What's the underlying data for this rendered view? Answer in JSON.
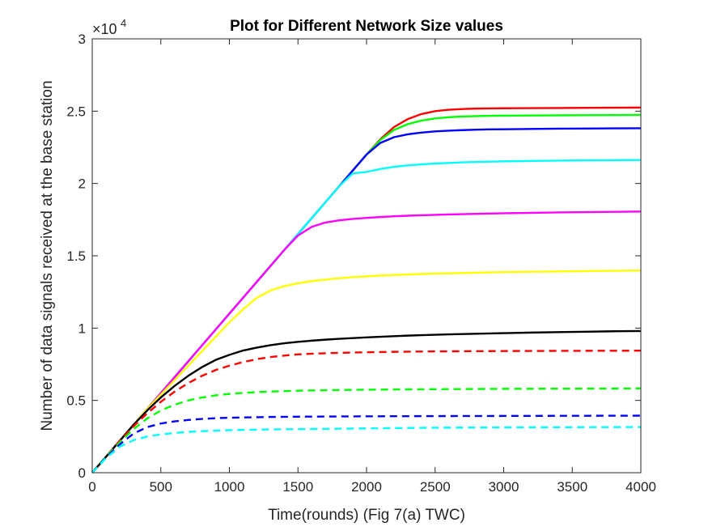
{
  "chart_data": {
    "type": "line",
    "title": "Plot for Different Network Size values",
    "xlabel": "Time(rounds) (Fig 7(a) TWC)",
    "ylabel": "Number of data signals received at the base station",
    "xlim": [
      0,
      4000
    ],
    "ylim": [
      0,
      30000
    ],
    "y_exponent_label": {
      "base": "×10",
      "power": "4"
    },
    "x_ticks": [
      0,
      500,
      1000,
      1500,
      2000,
      2500,
      3000,
      3500,
      4000
    ],
    "x_tick_labels": [
      "0",
      "500",
      "1000",
      "1500",
      "2000",
      "2500",
      "3000",
      "3500",
      "4000"
    ],
    "y_ticks": [
      0,
      5000,
      10000,
      15000,
      20000,
      25000,
      30000
    ],
    "y_tick_labels": [
      "0",
      "0.5",
      "1",
      "1.5",
      "2",
      "2.5",
      "3"
    ],
    "grid": false,
    "legend": "none",
    "x": [
      0,
      100,
      200,
      300,
      400,
      500,
      600,
      700,
      800,
      900,
      1000,
      1100,
      1200,
      1300,
      1400,
      1500,
      1600,
      1700,
      1800,
      1900,
      2000,
      2100,
      2200,
      2300,
      2400,
      2500,
      2600,
      2700,
      2800,
      2900,
      3000,
      3200,
      3400,
      3600,
      3800,
      4000
    ],
    "series": [
      {
        "color": "#ff0000",
        "style": "solid",
        "values": [
          0,
          1100,
          2200,
          3300,
          4400,
          5500,
          6600,
          7700,
          8800,
          9900,
          11000,
          12100,
          13200,
          14300,
          15400,
          16500,
          17600,
          18700,
          19800,
          20900,
          22000,
          23050,
          23900,
          24450,
          24800,
          25000,
          25100,
          25150,
          25180,
          25190,
          25200,
          25210,
          25220,
          25230,
          25240,
          25250
        ]
      },
      {
        "color": "#00ff00",
        "style": "solid",
        "values": [
          0,
          1100,
          2200,
          3300,
          4400,
          5500,
          6600,
          7700,
          8800,
          9900,
          11000,
          12100,
          13200,
          14300,
          15400,
          16500,
          17600,
          18700,
          19800,
          20900,
          22000,
          23000,
          23700,
          24100,
          24350,
          24500,
          24580,
          24630,
          24660,
          24680,
          24690,
          24700,
          24710,
          24720,
          24730,
          24740
        ]
      },
      {
        "color": "#0000ff",
        "style": "solid",
        "values": [
          0,
          1100,
          2200,
          3300,
          4400,
          5500,
          6600,
          7700,
          8800,
          9900,
          11000,
          12100,
          13200,
          14300,
          15400,
          16500,
          17600,
          18700,
          19800,
          20900,
          22000,
          22800,
          23200,
          23400,
          23520,
          23600,
          23650,
          23690,
          23720,
          23740,
          23750,
          23770,
          23790,
          23800,
          23810,
          23820
        ]
      },
      {
        "color": "#00ffff",
        "style": "solid",
        "values": [
          0,
          1100,
          2200,
          3300,
          4400,
          5500,
          6600,
          7700,
          8800,
          9900,
          11000,
          12100,
          13200,
          14300,
          15400,
          16500,
          17600,
          18700,
          19800,
          20700,
          20800,
          21000,
          21150,
          21250,
          21320,
          21380,
          21420,
          21460,
          21490,
          21510,
          21530,
          21560,
          21580,
          21600,
          21610,
          21620
        ]
      },
      {
        "color": "#ff00ff",
        "style": "solid",
        "values": [
          0,
          1100,
          2200,
          3300,
          4400,
          5500,
          6600,
          7700,
          8800,
          9900,
          11000,
          12100,
          13200,
          14300,
          15400,
          16400,
          17000,
          17300,
          17450,
          17550,
          17620,
          17680,
          17730,
          17770,
          17800,
          17830,
          17860,
          17880,
          17900,
          17920,
          17940,
          17970,
          18000,
          18020,
          18040,
          18060
        ]
      },
      {
        "color": "#ffff00",
        "style": "solid",
        "values": [
          0,
          1100,
          2200,
          3300,
          4400,
          5400,
          6400,
          7400,
          8400,
          9400,
          10400,
          11300,
          12100,
          12600,
          12900,
          13100,
          13250,
          13350,
          13450,
          13520,
          13580,
          13630,
          13670,
          13710,
          13740,
          13770,
          13790,
          13810,
          13830,
          13850,
          13870,
          13900,
          13920,
          13940,
          13960,
          13980
        ]
      },
      {
        "color": "#000000",
        "style": "solid",
        "values": [
          0,
          1100,
          2200,
          3300,
          4300,
          5200,
          6000,
          6700,
          7300,
          7800,
          8150,
          8450,
          8650,
          8820,
          8950,
          9050,
          9130,
          9200,
          9260,
          9310,
          9360,
          9400,
          9440,
          9480,
          9510,
          9540,
          9570,
          9590,
          9610,
          9630,
          9650,
          9690,
          9720,
          9750,
          9780,
          9800
        ]
      },
      {
        "color": "#ff0000",
        "style": "dashed",
        "values": [
          0,
          1100,
          2200,
          3200,
          4100,
          4900,
          5600,
          6200,
          6700,
          7100,
          7400,
          7650,
          7850,
          8000,
          8100,
          8180,
          8230,
          8260,
          8290,
          8310,
          8330,
          8345,
          8360,
          8370,
          8380,
          8390,
          8395,
          8400,
          8405,
          8410,
          8415,
          8420,
          8425,
          8430,
          8435,
          8440
        ]
      },
      {
        "color": "#00ff00",
        "style": "dashed",
        "values": [
          0,
          1100,
          2100,
          3000,
          3750,
          4300,
          4700,
          5000,
          5200,
          5350,
          5450,
          5520,
          5570,
          5610,
          5640,
          5670,
          5690,
          5705,
          5720,
          5730,
          5740,
          5750,
          5760,
          5765,
          5770,
          5775,
          5780,
          5785,
          5790,
          5795,
          5800,
          5805,
          5810,
          5815,
          5820,
          5830
        ]
      },
      {
        "color": "#0000ff",
        "style": "dashed",
        "values": [
          0,
          1050,
          1950,
          2700,
          3150,
          3400,
          3550,
          3650,
          3720,
          3770,
          3800,
          3820,
          3840,
          3855,
          3865,
          3875,
          3880,
          3885,
          3890,
          3895,
          3900,
          3903,
          3906,
          3909,
          3912,
          3915,
          3918,
          3920,
          3922,
          3924,
          3926,
          3930,
          3934,
          3938,
          3942,
          3946
        ]
      },
      {
        "color": "#00ffff",
        "style": "dashed",
        "values": [
          0,
          1000,
          1800,
          2250,
          2500,
          2650,
          2750,
          2820,
          2870,
          2910,
          2940,
          2960,
          2980,
          2995,
          3005,
          3015,
          3025,
          3035,
          3045,
          3055,
          3065,
          3075,
          3085,
          3095,
          3105,
          3110,
          3115,
          3120,
          3125,
          3130,
          3135,
          3140,
          3145,
          3150,
          3155,
          3160
        ]
      }
    ]
  }
}
